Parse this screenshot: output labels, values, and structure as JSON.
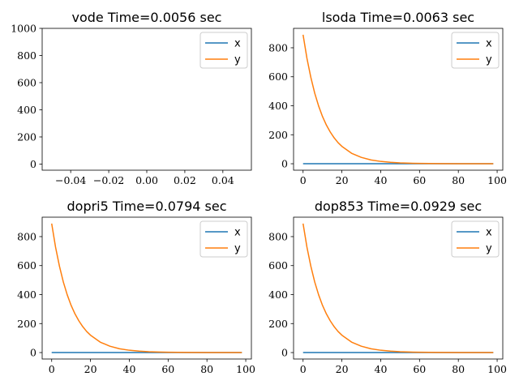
{
  "chart_data": [
    {
      "type": "line",
      "title": "vode Time=0.0056 sec",
      "xlim": [
        -0.055,
        0.055
      ],
      "ylim": [
        -45,
        1000
      ],
      "xticks": [
        -0.04,
        -0.02,
        0.0,
        0.02,
        0.04
      ],
      "xtick_labels": [
        "−0.04",
        "−0.02",
        "0.00",
        "0.02",
        "0.04"
      ],
      "yticks": [
        0,
        200,
        400,
        600,
        800,
        1000
      ],
      "ytick_labels": [
        "0",
        "200",
        "400",
        "600",
        "800",
        "1000"
      ],
      "legend_position": "top-right",
      "series": [
        {
          "name": "x",
          "color": "#1f77b4",
          "x": [],
          "y": []
        },
        {
          "name": "y",
          "color": "#ff7f0e",
          "x": [],
          "y": []
        }
      ]
    },
    {
      "type": "line",
      "title": "lsoda Time=0.0063 sec",
      "xlim": [
        -4.9,
        102.9
      ],
      "ylim": [
        -44.5,
        934
      ],
      "xticks": [
        0,
        20,
        40,
        60,
        80,
        100
      ],
      "xtick_labels": [
        "0",
        "20",
        "40",
        "60",
        "80",
        "100"
      ],
      "yticks": [
        0,
        200,
        400,
        600,
        800
      ],
      "ytick_labels": [
        "0",
        "200",
        "400",
        "600",
        "800"
      ],
      "legend_position": "top-right",
      "series": [
        {
          "name": "x",
          "color": "#1f77b4",
          "x": [
            0,
            98
          ],
          "y": [
            0,
            0
          ]
        },
        {
          "name": "y",
          "color": "#ff7f0e",
          "x": [
            0,
            2,
            4,
            6,
            8,
            10,
            12,
            14,
            16,
            18,
            20,
            25,
            30,
            35,
            40,
            45,
            50,
            55,
            60,
            70,
            80,
            90,
            98
          ],
          "y": [
            890,
            727,
            596,
            487,
            399,
            326,
            267,
            219,
            179,
            146,
            120,
            72,
            44,
            26,
            16,
            10,
            6,
            3.6,
            2.2,
            0.8,
            0.3,
            0.1,
            0.05
          ]
        }
      ]
    },
    {
      "type": "line",
      "title": "dopri5 Time=0.0794 sec",
      "xlim": [
        -4.9,
        102.9
      ],
      "ylim": [
        -44.5,
        934
      ],
      "xticks": [
        0,
        20,
        40,
        60,
        80,
        100
      ],
      "xtick_labels": [
        "0",
        "20",
        "40",
        "60",
        "80",
        "100"
      ],
      "yticks": [
        0,
        200,
        400,
        600,
        800
      ],
      "ytick_labels": [
        "0",
        "200",
        "400",
        "600",
        "800"
      ],
      "legend_position": "top-right",
      "series": [
        {
          "name": "x",
          "color": "#1f77b4",
          "x": [
            0,
            98
          ],
          "y": [
            0,
            0
          ]
        },
        {
          "name": "y",
          "color": "#ff7f0e",
          "x": [
            0,
            2,
            4,
            6,
            8,
            10,
            12,
            14,
            16,
            18,
            20,
            25,
            30,
            35,
            40,
            45,
            50,
            55,
            60,
            70,
            80,
            90,
            98
          ],
          "y": [
            890,
            727,
            596,
            487,
            399,
            326,
            267,
            219,
            179,
            146,
            120,
            72,
            44,
            26,
            16,
            10,
            6,
            3.6,
            2.2,
            0.8,
            0.3,
            0.1,
            0.05
          ]
        }
      ]
    },
    {
      "type": "line",
      "title": "dop853 Time=0.0929 sec",
      "xlim": [
        -4.9,
        102.9
      ],
      "ylim": [
        -44.5,
        934
      ],
      "xticks": [
        0,
        20,
        40,
        60,
        80,
        100
      ],
      "xtick_labels": [
        "0",
        "20",
        "40",
        "60",
        "80",
        "100"
      ],
      "yticks": [
        0,
        200,
        400,
        600,
        800
      ],
      "ytick_labels": [
        "0",
        "200",
        "400",
        "600",
        "800"
      ],
      "legend_position": "top-right",
      "series": [
        {
          "name": "x",
          "color": "#1f77b4",
          "x": [
            0,
            98
          ],
          "y": [
            0,
            0
          ]
        },
        {
          "name": "y",
          "color": "#ff7f0e",
          "x": [
            0,
            2,
            4,
            6,
            8,
            10,
            12,
            14,
            16,
            18,
            20,
            25,
            30,
            35,
            40,
            45,
            50,
            55,
            60,
            70,
            80,
            90,
            98
          ],
          "y": [
            890,
            727,
            596,
            487,
            399,
            326,
            267,
            219,
            179,
            146,
            120,
            72,
            44,
            26,
            16,
            10,
            6,
            3.6,
            2.2,
            0.8,
            0.3,
            0.1,
            0.05
          ]
        }
      ]
    }
  ]
}
